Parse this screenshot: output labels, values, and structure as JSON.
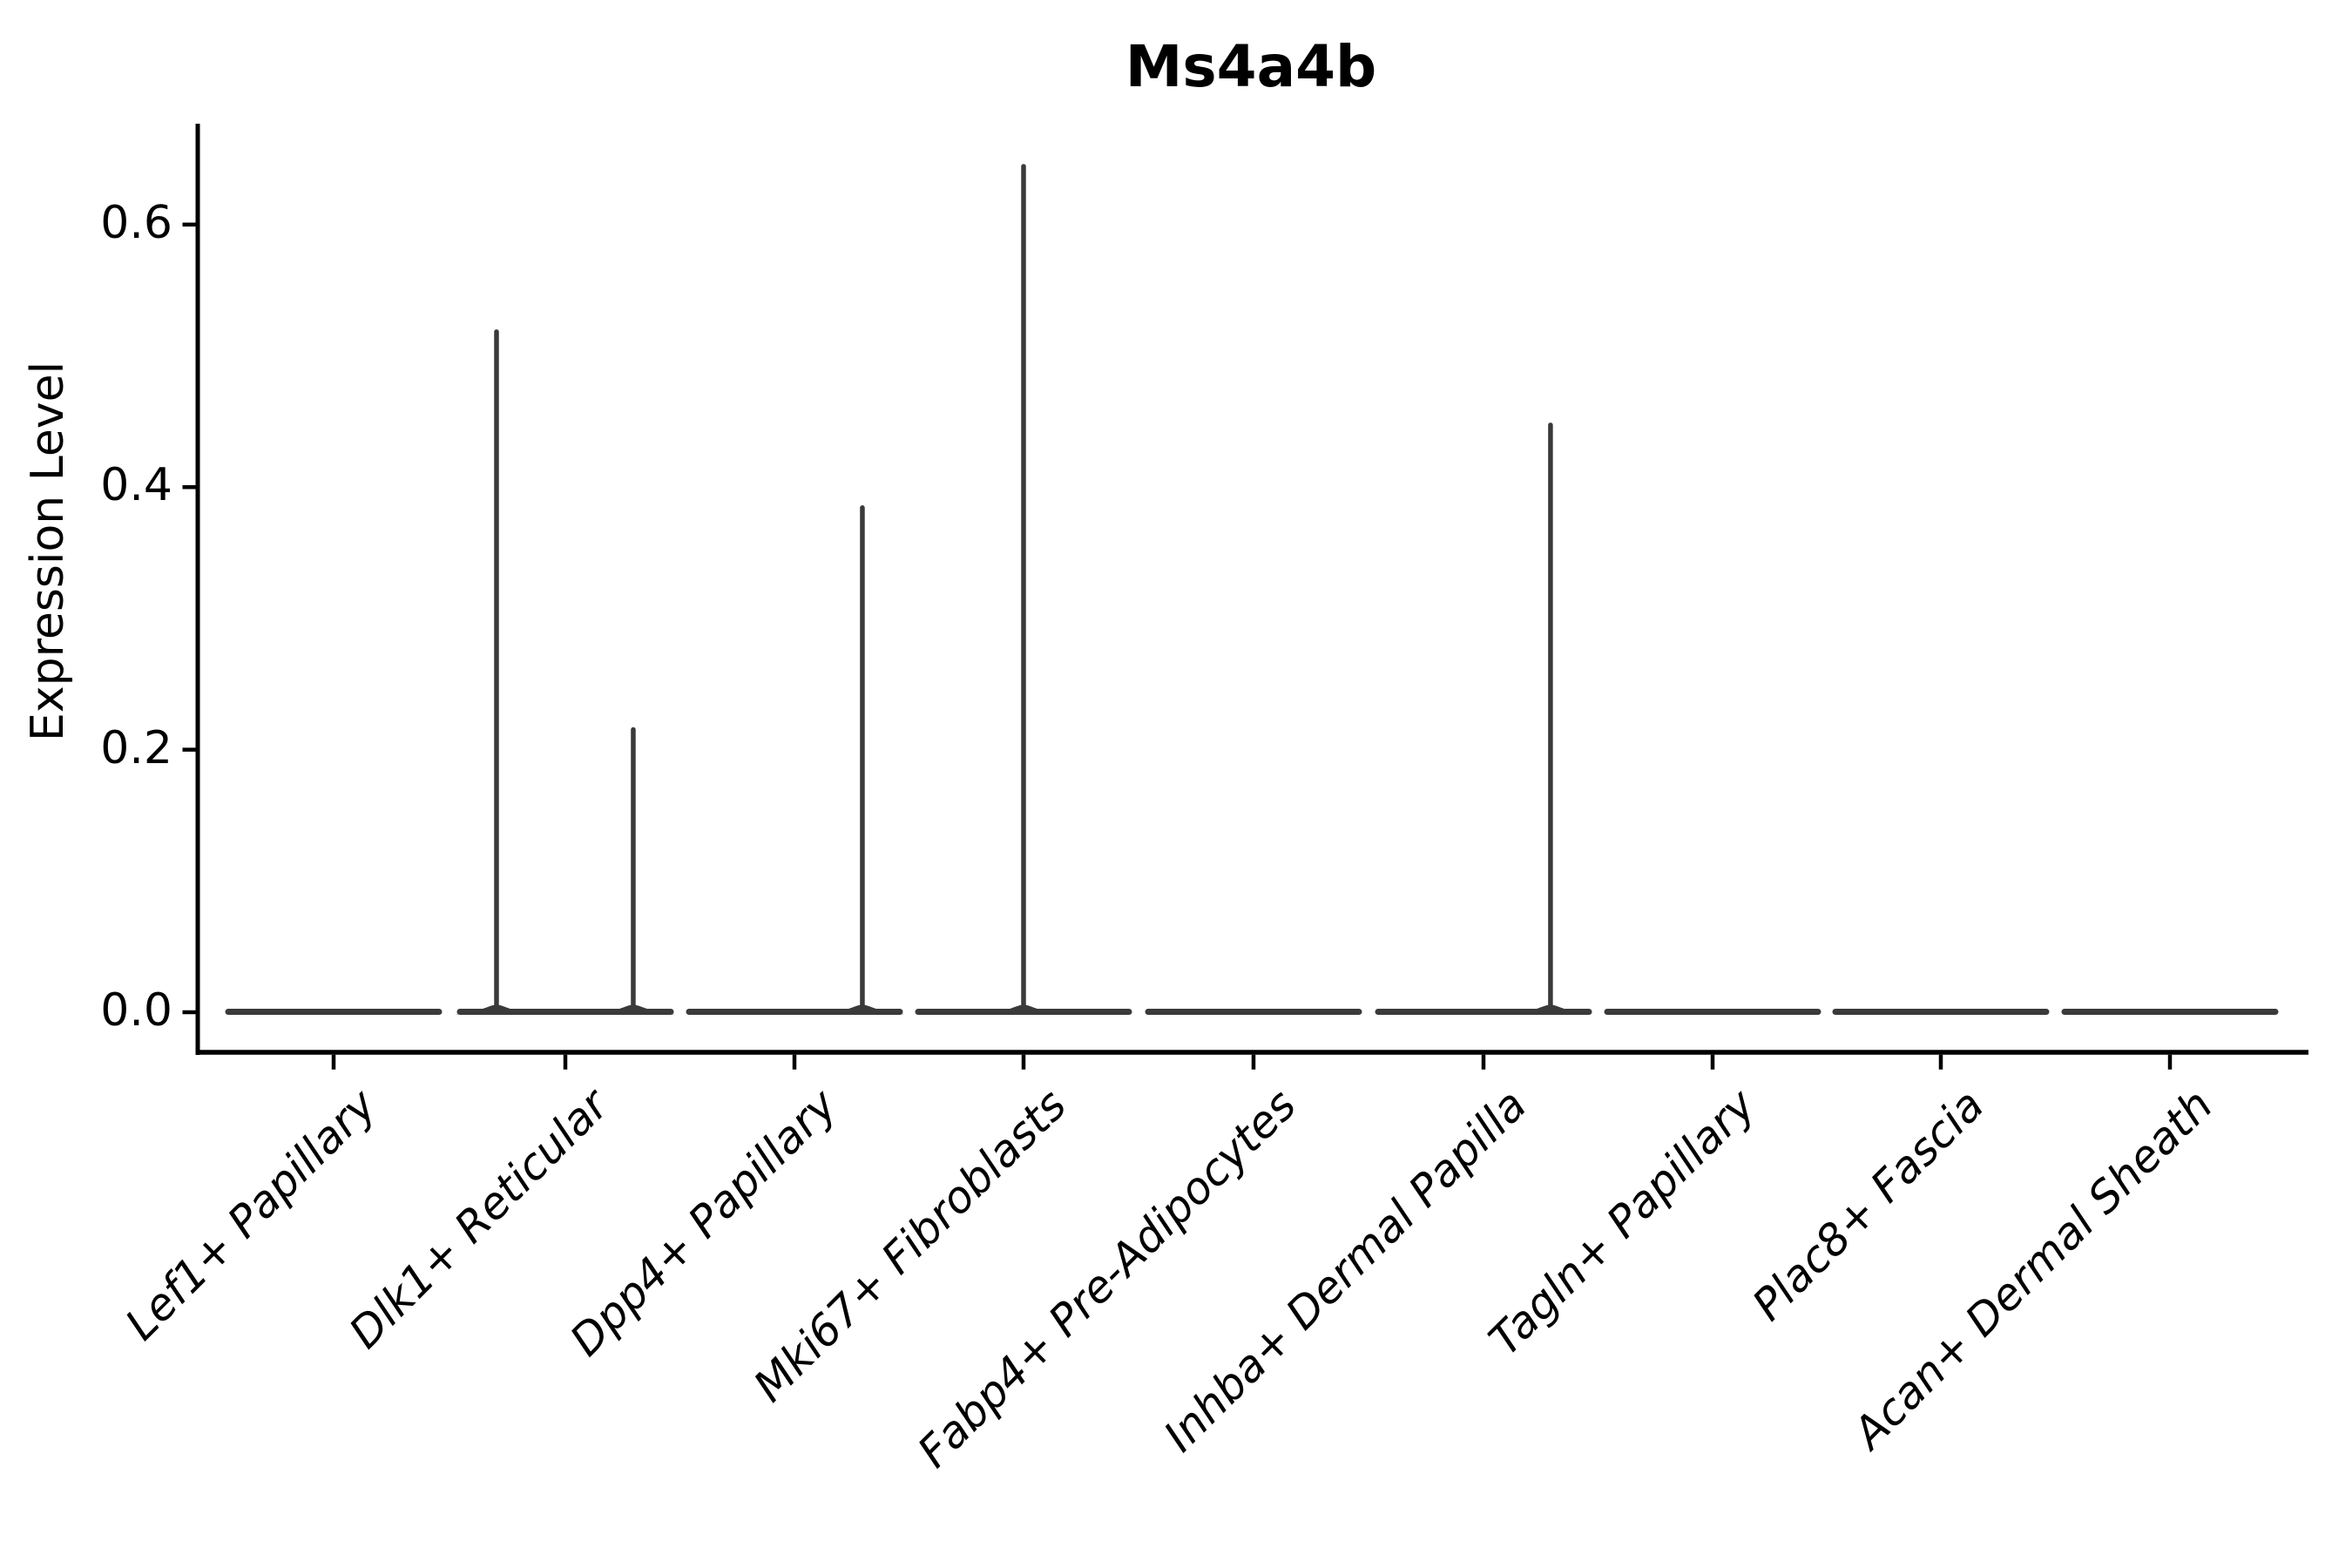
{
  "figure": {
    "background": "#ffffff"
  },
  "chart_data": {
    "type": "violin",
    "title": "Ms4a4b",
    "xlabel": "",
    "ylabel": "Expression Level",
    "ylim": [
      0,
      0.677
    ],
    "grid": false,
    "legend": "none",
    "categories": [
      "Lef1+ Papillary",
      "Dlk1+ Reticular",
      "Dpp4+ Papillary",
      "Mki67+ Fibroblasts",
      "Fabp4+ Pre-Adipocytes",
      "Inhba+ Dermal Papilla",
      "Tagln+ Papillary",
      "Plac8+ Fascia",
      "Acan+ Dermal Sheath"
    ],
    "yticks": [
      {
        "label": "0.0",
        "value": 0.0
      },
      {
        "label": "0.2",
        "value": 0.2
      },
      {
        "label": "0.4",
        "value": 0.4
      },
      {
        "label": "0.6",
        "value": 0.6
      }
    ],
    "series": [
      {
        "category": "Lef1+ Papillary",
        "bulk_at_zero": true,
        "spikes": []
      },
      {
        "category": "Dlk1+ Reticular",
        "bulk_at_zero": true,
        "spikes": [
          {
            "x_offset": -0.3,
            "max_value": 0.52
          },
          {
            "x_offset": 0.296,
            "max_value": 0.217
          }
        ]
      },
      {
        "category": "Dpp4+ Papillary",
        "bulk_at_zero": true,
        "spikes": [
          {
            "x_offset": 0.296,
            "max_value": 0.386
          }
        ]
      },
      {
        "category": "Mki67+ Fibroblasts",
        "bulk_at_zero": true,
        "spikes": [
          {
            "x_offset": 0.0,
            "max_value": 0.646
          }
        ]
      },
      {
        "category": "Fabp4+ Pre-Adipocytes",
        "bulk_at_zero": true,
        "spikes": []
      },
      {
        "category": "Inhba+ Dermal Papilla",
        "bulk_at_zero": true,
        "spikes": [
          {
            "x_offset": 0.292,
            "max_value": 0.449
          }
        ]
      },
      {
        "category": "Tagln+ Papillary",
        "bulk_at_zero": true,
        "spikes": []
      },
      {
        "category": "Plac8+ Fascia",
        "bulk_at_zero": true,
        "spikes": []
      },
      {
        "category": "Acan+ Dermal Sheath",
        "bulk_at_zero": true,
        "spikes": []
      }
    ],
    "colors": {
      "violin": "#3a3a3a",
      "axis": "#000000",
      "text": "#000000",
      "background": "#ffffff"
    }
  }
}
